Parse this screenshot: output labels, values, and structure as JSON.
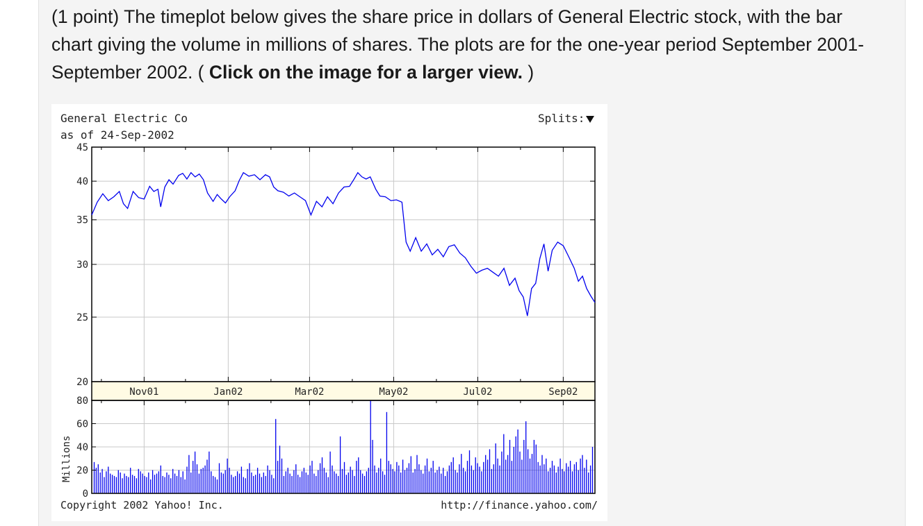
{
  "question": {
    "points": "(1 point)",
    "text": "The timeplot below gives the share price in dollars of General Electric stock, with the bar chart giving the volume in millions of shares. The plots are for the one-year period September 2001-September 2002. (",
    "link_text": "Click on the image for a larger view.",
    "close_paren": ")"
  },
  "chart_data": [
    {
      "type": "line",
      "title": "General Electric Co",
      "subtitle": "as of 24-Sep-2002",
      "splits_label": "Splits:",
      "ylabel": "",
      "ylim": [
        20,
        45
      ],
      "y_scale": "log",
      "y_ticks": [
        "45",
        "40",
        "35",
        "30",
        "25",
        "20"
      ],
      "x_ticks": [
        "Nov01",
        "Jan02",
        "Mar02",
        "May02",
        "Jul02",
        "Sep02"
      ],
      "grid": true,
      "line_color": "#0000ee",
      "x_start": "2001-09-24",
      "x_end": "2002-09-24",
      "points": [
        [
          "2001-09-24",
          35.6
        ],
        [
          "2001-09-28",
          37.2
        ],
        [
          "2001-10-02",
          38.3
        ],
        [
          "2001-10-06",
          37.4
        ],
        [
          "2001-10-10",
          37.9
        ],
        [
          "2001-10-14",
          38.6
        ],
        [
          "2001-10-17",
          37.0
        ],
        [
          "2001-10-20",
          36.4
        ],
        [
          "2001-10-24",
          38.6
        ],
        [
          "2001-10-28",
          37.8
        ],
        [
          "2001-11-01",
          37.6
        ],
        [
          "2001-11-05",
          39.3
        ],
        [
          "2001-11-08",
          38.6
        ],
        [
          "2001-11-11",
          38.9
        ],
        [
          "2001-11-13",
          36.6
        ],
        [
          "2001-11-16",
          39.2
        ],
        [
          "2001-11-19",
          40.2
        ],
        [
          "2001-11-22",
          39.6
        ],
        [
          "2001-11-26",
          40.8
        ],
        [
          "2001-11-29",
          41.1
        ],
        [
          "2001-12-02",
          40.3
        ],
        [
          "2001-12-05",
          41.2
        ],
        [
          "2001-12-08",
          40.6
        ],
        [
          "2001-12-11",
          41.0
        ],
        [
          "2001-12-14",
          40.2
        ],
        [
          "2001-12-17",
          38.4
        ],
        [
          "2001-12-21",
          37.3
        ],
        [
          "2001-12-24",
          38.2
        ],
        [
          "2001-12-27",
          37.6
        ],
        [
          "2001-12-30",
          37.1
        ],
        [
          "2002-01-02",
          37.9
        ],
        [
          "2002-01-06",
          38.7
        ],
        [
          "2002-01-09",
          40.1
        ],
        [
          "2002-01-12",
          41.2
        ],
        [
          "2002-01-16",
          40.7
        ],
        [
          "2002-01-20",
          40.9
        ],
        [
          "2002-01-24",
          40.2
        ],
        [
          "2002-01-28",
          40.9
        ],
        [
          "2002-01-31",
          40.6
        ],
        [
          "2002-02-03",
          39.2
        ],
        [
          "2002-02-06",
          38.7
        ],
        [
          "2002-02-10",
          38.5
        ],
        [
          "2002-02-14",
          38.0
        ],
        [
          "2002-02-18",
          38.4
        ],
        [
          "2002-02-22",
          37.9
        ],
        [
          "2002-02-26",
          37.4
        ],
        [
          "2002-03-02",
          35.6
        ],
        [
          "2002-03-06",
          37.3
        ],
        [
          "2002-03-10",
          36.6
        ],
        [
          "2002-03-14",
          37.9
        ],
        [
          "2002-03-18",
          37.0
        ],
        [
          "2002-03-22",
          38.4
        ],
        [
          "2002-03-26",
          39.2
        ],
        [
          "2002-03-30",
          39.3
        ],
        [
          "2002-04-02",
          40.2
        ],
        [
          "2002-04-05",
          41.2
        ],
        [
          "2002-04-08",
          40.6
        ],
        [
          "2002-04-11",
          40.3
        ],
        [
          "2002-04-14",
          40.6
        ],
        [
          "2002-04-18",
          38.9
        ],
        [
          "2002-04-21",
          38.0
        ],
        [
          "2002-04-25",
          37.9
        ],
        [
          "2002-04-29",
          37.4
        ],
        [
          "2002-05-03",
          37.5
        ],
        [
          "2002-05-07",
          37.2
        ],
        [
          "2002-05-10",
          32.4
        ],
        [
          "2002-05-13",
          31.4
        ],
        [
          "2002-05-17",
          32.9
        ],
        [
          "2002-05-21",
          31.4
        ],
        [
          "2002-05-25",
          32.2
        ],
        [
          "2002-05-29",
          31.0
        ],
        [
          "2002-06-02",
          31.6
        ],
        [
          "2002-06-06",
          30.8
        ],
        [
          "2002-06-10",
          31.9
        ],
        [
          "2002-06-14",
          32.1
        ],
        [
          "2002-06-18",
          31.2
        ],
        [
          "2002-06-22",
          30.7
        ],
        [
          "2002-06-26",
          29.8
        ],
        [
          "2002-06-30",
          29.1
        ],
        [
          "2002-07-04",
          29.4
        ],
        [
          "2002-07-08",
          29.6
        ],
        [
          "2002-07-12",
          29.2
        ],
        [
          "2002-07-16",
          28.8
        ],
        [
          "2002-07-20",
          29.6
        ],
        [
          "2002-07-24",
          27.9
        ],
        [
          "2002-07-28",
          28.6
        ],
        [
          "2002-07-31",
          27.4
        ],
        [
          "2002-08-03",
          26.8
        ],
        [
          "2002-08-06",
          25.1
        ],
        [
          "2002-08-09",
          27.6
        ],
        [
          "2002-08-12",
          28.1
        ],
        [
          "2002-08-15",
          30.6
        ],
        [
          "2002-08-18",
          32.2
        ],
        [
          "2002-08-21",
          29.3
        ],
        [
          "2002-08-24",
          31.5
        ],
        [
          "2002-08-28",
          32.4
        ],
        [
          "2002-09-01",
          32.0
        ],
        [
          "2002-09-05",
          30.8
        ],
        [
          "2002-09-09",
          29.6
        ],
        [
          "2002-09-12",
          28.3
        ],
        [
          "2002-09-15",
          28.8
        ],
        [
          "2002-09-18",
          27.6
        ],
        [
          "2002-09-21",
          26.9
        ],
        [
          "2002-09-24",
          26.3
        ]
      ]
    },
    {
      "type": "bar",
      "ylabel": "Millions",
      "ylim": [
        0,
        80
      ],
      "y_ticks": [
        "80",
        "60",
        "40",
        "20",
        "0"
      ],
      "bar_color": "#0000ee",
      "x_start": "2001-09-24",
      "x_end": "2002-09-24",
      "values": [
        27,
        22,
        25,
        18,
        21,
        14,
        19,
        23,
        17,
        16,
        15,
        14,
        20,
        18,
        13,
        17,
        15,
        14,
        22,
        16,
        15,
        13,
        21,
        19,
        17,
        15,
        14,
        18,
        12,
        20,
        16,
        17,
        19,
        24,
        15,
        14,
        18,
        16,
        13,
        21,
        17,
        15,
        20,
        14,
        19,
        12,
        23,
        33,
        18,
        28,
        36,
        25,
        17,
        21,
        22,
        24,
        29,
        36,
        19,
        15,
        14,
        12,
        26,
        18,
        17,
        20,
        30,
        22,
        16,
        14,
        15,
        19,
        17,
        23,
        14,
        13,
        21,
        26,
        18,
        15,
        16,
        22,
        17,
        14,
        18,
        15,
        24,
        20,
        16,
        13,
        64,
        28,
        41,
        30,
        15,
        19,
        22,
        17,
        15,
        20,
        25,
        16,
        14,
        19,
        22,
        18,
        16,
        24,
        28,
        17,
        15,
        20,
        26,
        31,
        22,
        18,
        14,
        36,
        24,
        19,
        17,
        15,
        49,
        21,
        27,
        16,
        18,
        23,
        20,
        15,
        28,
        31,
        20,
        17,
        15,
        19,
        22,
        80,
        46,
        24,
        18,
        22,
        30,
        19,
        16,
        70,
        28,
        25,
        21,
        19,
        27,
        24,
        18,
        29,
        20,
        22,
        26,
        32,
        18,
        21,
        33,
        25,
        20,
        17,
        24,
        30,
        19,
        22,
        28,
        18,
        20,
        23,
        17,
        22,
        15,
        19,
        24,
        27,
        31,
        20,
        18,
        25,
        34,
        22,
        19,
        28,
        37,
        24,
        20,
        31,
        26,
        23,
        19,
        27,
        33,
        29,
        38,
        21,
        25,
        43,
        30,
        24,
        36,
        51,
        29,
        33,
        46,
        28,
        40,
        49,
        55,
        36,
        29,
        46,
        62,
        38,
        30,
        34,
        46,
        42,
        27,
        24,
        33,
        25,
        30,
        19,
        22,
        28,
        24,
        18,
        23,
        30,
        21,
        19,
        26,
        23,
        28,
        19,
        25,
        27,
        20,
        30,
        33,
        22,
        29,
        18,
        24,
        40
      ]
    }
  ],
  "footer": {
    "copyright": "Copyright 2002 Yahoo! Inc.",
    "url": "http://finance.yahoo.com/"
  }
}
